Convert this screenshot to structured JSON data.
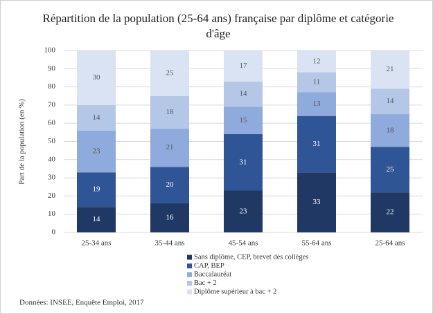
{
  "chart_data": {
    "type": "stacked_bar",
    "title": "Répartition de la population (25-64 ans) française par diplôme et catégorie d'âge",
    "y_label": "Part de la population (en %)",
    "categories": [
      "25-34 ans",
      "35-44 ans",
      "45-54 ans",
      "55-64 ans",
      "25-64 ans"
    ],
    "series": [
      {
        "name": "Sans diplôme, CEP, brevet des collèges",
        "color": "#203864",
        "values": [
          14,
          16,
          23,
          33,
          22
        ]
      },
      {
        "name": "CAP, BEP",
        "color": "#2f5597",
        "values": [
          19,
          20,
          31,
          31,
          25
        ]
      },
      {
        "name": "Baccalauréat",
        "color": "#8faadc",
        "values": [
          23,
          21,
          15,
          13,
          18
        ]
      },
      {
        "name": "Bac + 2",
        "color": "#b4c7e7",
        "values": [
          14,
          18,
          14,
          11,
          14
        ]
      },
      {
        "name": "Diplôme supérieur à bac + 2",
        "color": "#dae3f3",
        "values": [
          30,
          25,
          17,
          12,
          21
        ]
      }
    ],
    "ylim": [
      0,
      100
    ],
    "yticks": [
      0,
      10,
      20,
      30,
      40,
      50,
      60,
      70,
      80,
      90,
      100
    ],
    "grid": true,
    "source": "Données: INSEE, Enquête Emploi, 2017"
  }
}
